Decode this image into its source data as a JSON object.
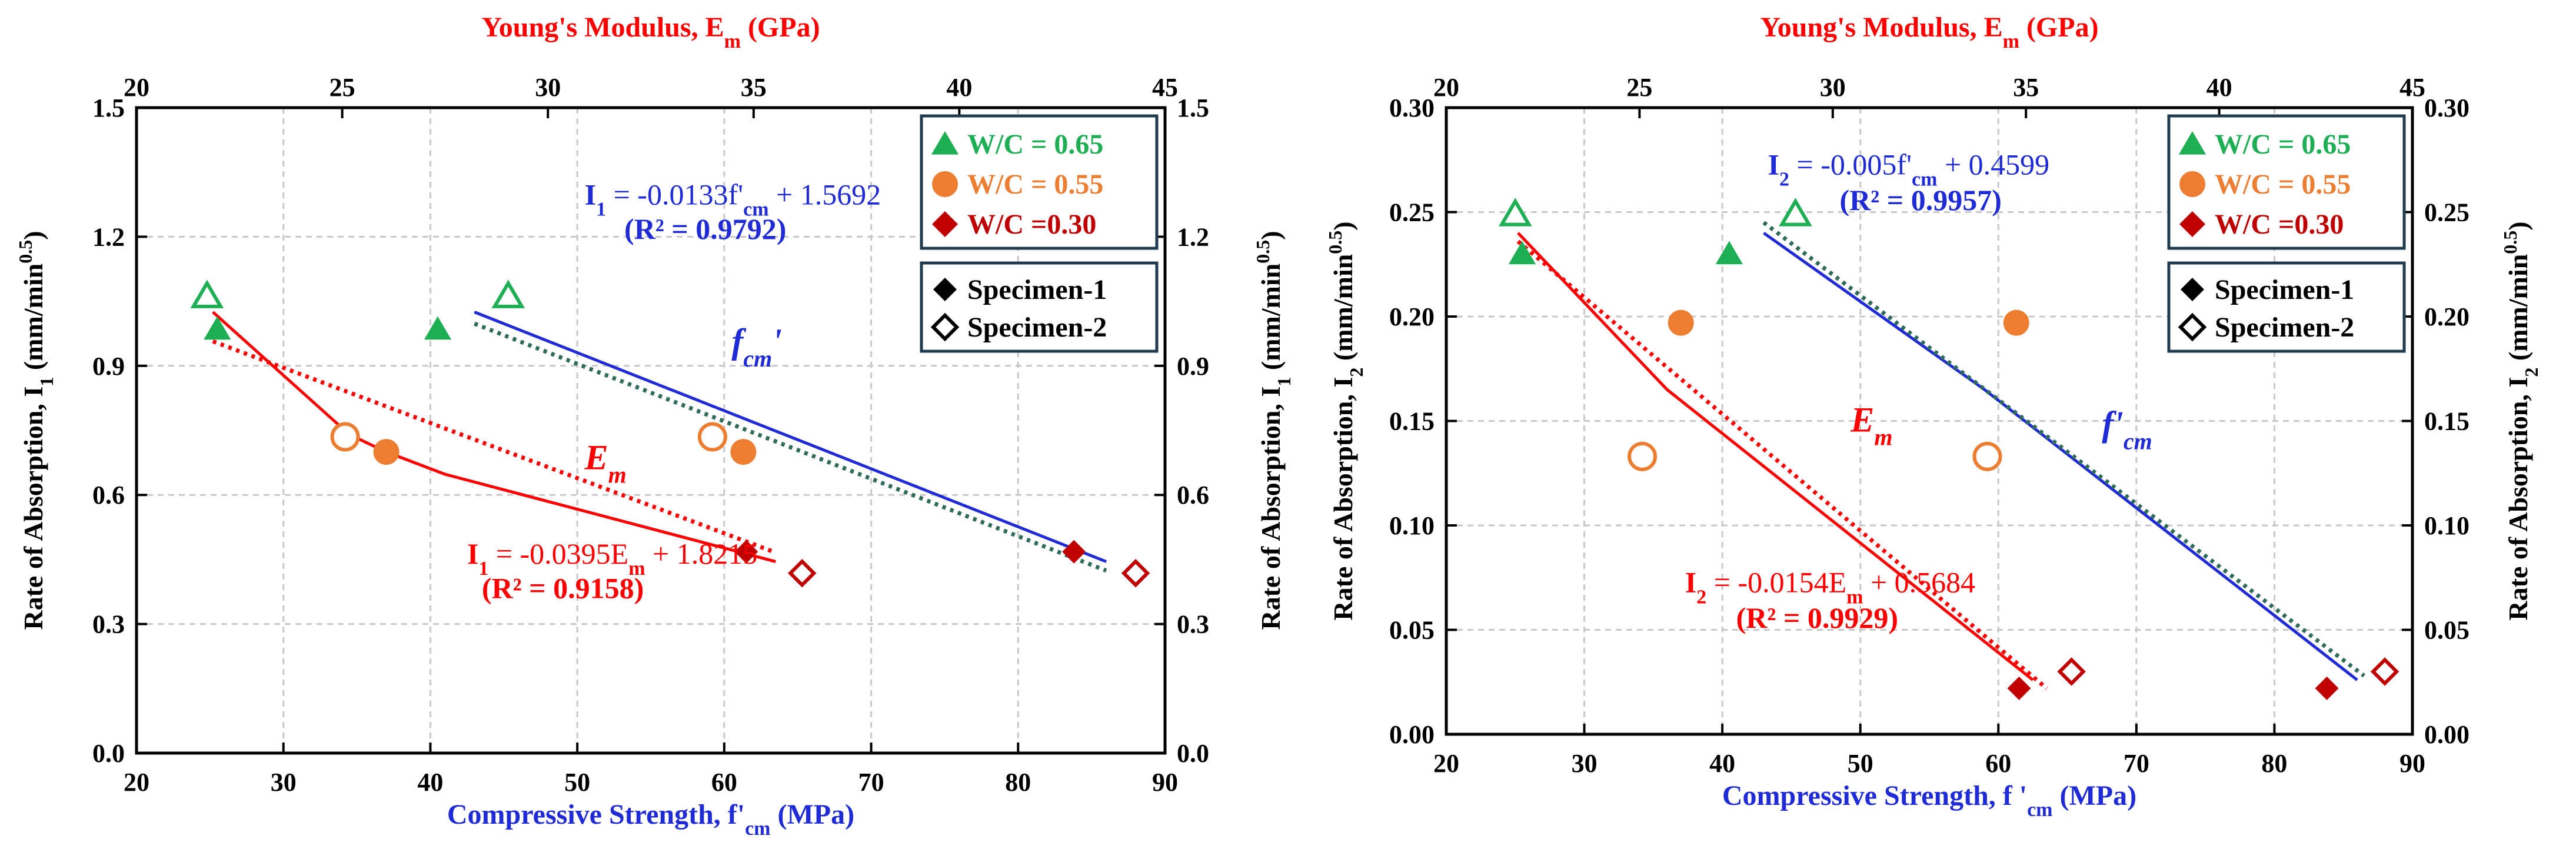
{
  "chart_data": [
    {
      "type": "scatter",
      "panel": "left",
      "xlabel": "Compressive Strength, f'cm (MPa)",
      "xlabel_parts": {
        "pre": "Compressive Strength, f'",
        "sub": "cm",
        "post": " (MPa)"
      },
      "x2label": "Young's Modulus, Em (GPa)",
      "x2label_parts": {
        "pre": "Young's Modulus, E",
        "sub": "m",
        "post": " (GPa)"
      },
      "ylabel": "Rate of Absorption, I1 (mm/min0.5)",
      "ylabel_parts": {
        "pre": "Rate of Absorption, I",
        "sub": "1",
        "mid": " (mm/min",
        "sup": "0.5",
        "post": ")"
      },
      "xlim": [
        20,
        90
      ],
      "x2lim": [
        20,
        45
      ],
      "ylim": [
        0,
        1.5
      ],
      "xticks": [
        "20",
        "30",
        "40",
        "50",
        "60",
        "70",
        "80",
        "90"
      ],
      "x2ticks": [
        "20",
        "25",
        "30",
        "35",
        "40",
        "45"
      ],
      "yticks": [
        "0.0",
        "0.3",
        "0.6",
        "0.9",
        "1.2",
        "1.5"
      ],
      "grid": true,
      "series": [
        {
          "name": "W/C = 0.65",
          "color": "#1eaf54",
          "marker": "triangle",
          "points": [
            {
              "x": 25.5,
              "y": 0.985,
              "filled": true
            },
            {
              "x": 40.5,
              "y": 0.985,
              "filled": true
            },
            {
              "x": 24.8,
              "y": 1.062,
              "filled": false
            },
            {
              "x": 45.3,
              "y": 1.062,
              "filled": false
            }
          ]
        },
        {
          "name": "W/C = 0.55",
          "color": "#ed7d31",
          "marker": "circle",
          "points": [
            {
              "x": 37.0,
              "y": 0.7,
              "filled": true
            },
            {
              "x": 61.3,
              "y": 0.7,
              "filled": true
            },
            {
              "x": 34.2,
              "y": 0.735,
              "filled": false
            },
            {
              "x": 59.2,
              "y": 0.735,
              "filled": false
            }
          ]
        },
        {
          "name": "W/C =0.30",
          "color": "#c00000",
          "marker": "diamond",
          "points": [
            {
              "x": 61.5,
              "y": 0.468,
              "filled": true
            },
            {
              "x": 83.8,
              "y": 0.468,
              "filled": true
            },
            {
              "x": 65.3,
              "y": 0.418,
              "filled": false
            },
            {
              "x": 88.0,
              "y": 0.418,
              "filled": false
            }
          ]
        }
      ],
      "fit_lines": [
        {
          "name": "fcm-curve",
          "color": "#1f2bd6",
          "style": "solid",
          "points": [
            [
              43,
              1.025
            ],
            [
              86,
              0.445
            ]
          ]
        },
        {
          "name": "fcm-trend",
          "color": "#2e6b5a",
          "style": "dotted",
          "points": [
            [
              43,
              0.998
            ],
            [
              86,
              0.424
            ]
          ]
        },
        {
          "name": "Em-curve",
          "color": "#ff0000",
          "style": "solid",
          "points": [
            [
              25.2,
              1.025
            ],
            [
              34.5,
              0.74
            ],
            [
              37.0,
              0.7
            ],
            [
              41,
              0.648
            ],
            [
              63.5,
              0.445
            ]
          ]
        },
        {
          "name": "Em-trend",
          "color": "#ff0000",
          "style": "dotted",
          "points": [
            [
              25.2,
              0.957
            ],
            [
              63.5,
              0.466
            ]
          ]
        }
      ],
      "labels": [
        {
          "key": "fcm",
          "text": "fcm'",
          "main": "f",
          "sub": "cm",
          "tail": "'",
          "color": "#1f2bd6",
          "x": 60.5,
          "y": 0.93
        },
        {
          "key": "Em",
          "text": "Em",
          "main": "E",
          "sub": "m",
          "tail": "",
          "color": "#ff0000",
          "x": 50.5,
          "y": 0.66
        }
      ],
      "equations": [
        {
          "key": "fcm",
          "color": "#1f2bd6",
          "text": "I1 = -0.0133f'cm + 1.5692",
          "parts": {
            "a": "I",
            "a_sub": "1",
            "b": " = -0.0133f'",
            "b_sub": "cm",
            "c": " + 1.5692"
          },
          "r2": "(R² = 0.9792)",
          "x": 50.5,
          "y": 1.275,
          "r2x": 53.2,
          "r2y": 1.195
        },
        {
          "key": "Em",
          "color": "#ff0000",
          "text": "I1 = -0.0395Em + 1.8215",
          "parts": {
            "a": "I",
            "a_sub": "1",
            "b": " = -0.0395E",
            "b_sub": "m",
            "c": " + 1.8215"
          },
          "r2": "(R² = 0.9158)",
          "x": 42.5,
          "y": 0.44,
          "r2x": 43.5,
          "r2y": 0.36
        }
      ],
      "legend_wc": [
        "W/C = 0.65",
        "W/C = 0.55",
        "W/C =0.30"
      ],
      "legend_specimen": [
        "Specimen-1",
        "Specimen-2"
      ],
      "legend_position": "top-right"
    },
    {
      "type": "scatter",
      "panel": "right",
      "xlabel": "Compressive Strength, f 'cm (MPa)",
      "xlabel_parts": {
        "pre": "Compressive Strength, f '",
        "sub": "cm",
        "post": " (MPa)"
      },
      "x2label": "Young's Modulus, Em (GPa)",
      "x2label_parts": {
        "pre": "Young's Modulus, E",
        "sub": "m",
        "post": " (GPa)"
      },
      "ylabel": "Rate of Absorption, I2 (mm/min0.5)",
      "ylabel_parts": {
        "pre": "Rate of Absorption, I",
        "sub": "2",
        "mid": " (mm/min",
        "sup": "0.5",
        "post": ")"
      },
      "xlim": [
        20,
        90
      ],
      "x2lim": [
        20,
        45
      ],
      "ylim": [
        0,
        0.3
      ],
      "xticks": [
        "20",
        "30",
        "40",
        "50",
        "60",
        "70",
        "80",
        "90"
      ],
      "x2ticks": [
        "20",
        "25",
        "30",
        "35",
        "40",
        "45"
      ],
      "yticks": [
        "0.00",
        "0.05",
        "0.10",
        "0.15",
        "0.20",
        "0.25",
        "0.30"
      ],
      "grid": true,
      "series": [
        {
          "name": "W/C = 0.65",
          "color": "#1eaf54",
          "marker": "triangle",
          "points": [
            {
              "x": 25.5,
              "y": 0.23,
              "filled": true
            },
            {
              "x": 40.5,
              "y": 0.23,
              "filled": true
            },
            {
              "x": 25.0,
              "y": 0.249,
              "filled": false
            },
            {
              "x": 45.3,
              "y": 0.249,
              "filled": false
            }
          ]
        },
        {
          "name": "W/C = 0.55",
          "color": "#ed7d31",
          "marker": "circle",
          "points": [
            {
              "x": 37.0,
              "y": 0.197,
              "filled": true
            },
            {
              "x": 61.3,
              "y": 0.197,
              "filled": true
            },
            {
              "x": 34.2,
              "y": 0.133,
              "filled": false
            },
            {
              "x": 59.2,
              "y": 0.133,
              "filled": false
            }
          ]
        },
        {
          "name": "W/C =0.30",
          "color": "#c00000",
          "marker": "diamond",
          "points": [
            {
              "x": 61.5,
              "y": 0.022,
              "filled": true
            },
            {
              "x": 83.8,
              "y": 0.022,
              "filled": true
            },
            {
              "x": 65.3,
              "y": 0.03,
              "filled": false
            },
            {
              "x": 88.0,
              "y": 0.03,
              "filled": false
            }
          ]
        }
      ],
      "fit_lines": [
        {
          "name": "fcm-curve",
          "color": "#1f2bd6",
          "style": "solid",
          "points": [
            [
              43,
              0.24
            ],
            [
              59.0,
              0.165
            ],
            [
              86.0,
              0.026
            ]
          ]
        },
        {
          "name": "fcm-trend",
          "color": "#2e6b5a",
          "style": "dotted",
          "points": [
            [
              43,
              0.245
            ],
            [
              86.5,
              0.028
            ]
          ]
        },
        {
          "name": "Em-curve",
          "color": "#ff0000",
          "style": "solid",
          "points": [
            [
              25.2,
              0.24
            ],
            [
              36.0,
              0.165
            ],
            [
              62.5,
              0.026
            ]
          ]
        },
        {
          "name": "Em-trend",
          "color": "#ff0000",
          "style": "dotted",
          "points": [
            [
              25.2,
              0.236
            ],
            [
              63.5,
              0.022
            ]
          ]
        }
      ],
      "labels": [
        {
          "key": "fcm",
          "text": "f'cm",
          "main": "f'",
          "sub": "cm",
          "tail": "",
          "color": "#1f2bd6",
          "x": 67.5,
          "y": 0.143
        },
        {
          "key": "Em",
          "text": "Em",
          "main": "E",
          "sub": "m",
          "tail": "",
          "color": "#ff0000",
          "x": 49.3,
          "y": 0.145
        }
      ],
      "equations": [
        {
          "key": "fcm",
          "color": "#1f2bd6",
          "text": "I2 = -0.005f'cm + 0.4599",
          "parts": {
            "a": "I",
            "a_sub": "2",
            "b": " = -0.005f'",
            "b_sub": "cm",
            "c": " + 0.4599"
          },
          "r2": "(R² = 0.9957)",
          "x": 43.3,
          "y": 0.268,
          "r2x": 48.5,
          "r2y": 0.251
        },
        {
          "key": "Em",
          "color": "#ff0000",
          "text": "I2 = -0.0154Em + 0.5684",
          "parts": {
            "a": "I",
            "a_sub": "2",
            "b": " = -0.0154E",
            "b_sub": "m",
            "c": " + 0.5684"
          },
          "r2": "(R² = 0.9929)",
          "x": 37.3,
          "y": 0.068,
          "r2x": 41.0,
          "r2y": 0.051
        }
      ],
      "legend_wc": [
        "W/C = 0.65",
        "W/C = 0.55",
        "W/C =0.30"
      ],
      "legend_specimen": [
        "Specimen-1",
        "Specimen-2"
      ],
      "legend_position": "top-right"
    }
  ]
}
